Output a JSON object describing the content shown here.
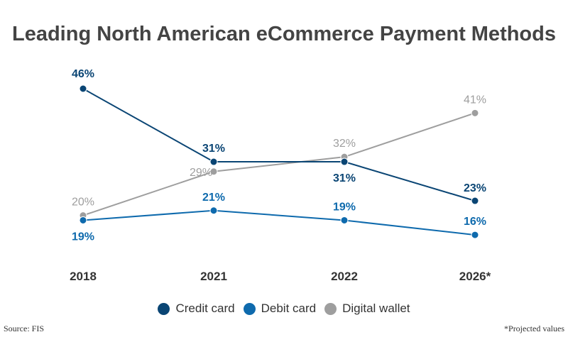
{
  "chart_data": {
    "type": "line",
    "title": "Leading North American eCommerce Payment Methods",
    "categories": [
      "2018",
      "2021",
      "2022",
      "2026*"
    ],
    "series": [
      {
        "name": "Credit card",
        "values": [
          46,
          31,
          31,
          23
        ],
        "labels": [
          "46%",
          "31%",
          "31%",
          "23%"
        ],
        "color": "#0a4574"
      },
      {
        "name": "Debit card",
        "values": [
          19,
          21,
          19,
          16
        ],
        "labels": [
          "19%",
          "21%",
          "19%",
          "16%"
        ],
        "color": "#0e6aad"
      },
      {
        "name": "Digital wallet",
        "values": [
          20,
          29,
          32,
          41
        ],
        "labels": [
          "20%",
          "29%",
          "32%",
          "41%"
        ],
        "color": "#9e9e9e"
      }
    ],
    "unit": "%",
    "grid": false,
    "legend": "bottom"
  },
  "footer": {
    "source": "Source: FIS",
    "note": "*Projected values"
  }
}
